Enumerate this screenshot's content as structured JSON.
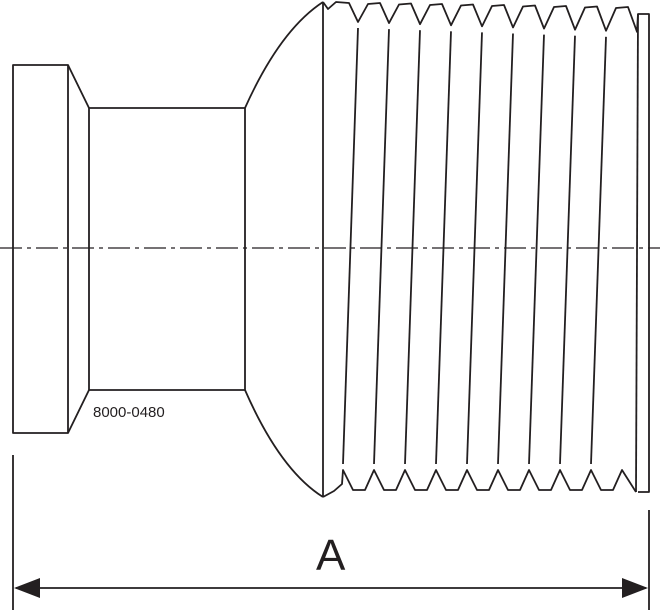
{
  "part_number": "8000-0480",
  "dimension_label": "A",
  "line_color": "#231f20",
  "thread_count": 10
}
